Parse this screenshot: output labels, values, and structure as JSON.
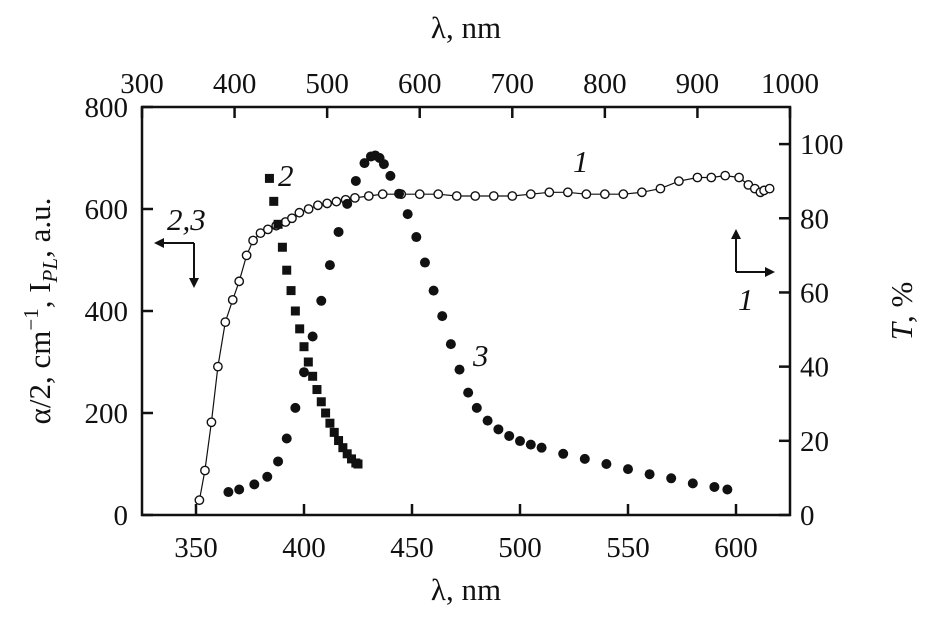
{
  "chart_data": {
    "type": "scatter",
    "top_axis": {
      "label": "λ, nm",
      "range": [
        300,
        1000
      ],
      "ticks": [
        "300",
        "400",
        "500",
        "600",
        "700",
        "800",
        "900",
        "1000"
      ]
    },
    "bottom_axis": {
      "label": "λ, nm",
      "range": [
        325,
        625
      ],
      "ticks": [
        "350",
        "400",
        "450",
        "500",
        "550",
        "600"
      ]
    },
    "left_axis": {
      "label": "α/2, cm⁻¹, IPL, a.u.",
      "label_parts": [
        "α/2, cm",
        "−1",
        ", I",
        "PL",
        ", a.u."
      ],
      "range": [
        0,
        800
      ],
      "ticks": [
        "0",
        "200",
        "400",
        "600",
        "800"
      ]
    },
    "right_axis": {
      "label": "T, %",
      "label_parts": [
        "T",
        ", %"
      ],
      "range": [
        0,
        110
      ],
      "ticks": [
        "0",
        "20",
        "40",
        "60",
        "80",
        "100"
      ]
    },
    "curve_labels": {
      "c1": "1",
      "c1_arrow": "1",
      "c23_arrow": "2,3",
      "c2": "2",
      "c3": "3"
    },
    "series": [
      {
        "name": "1",
        "description": "Transmittance T, % (top axis λ, right axis)",
        "marker": "open-circle",
        "axis": "top-right",
        "x": [
          362,
          368,
          375,
          382,
          390,
          398,
          405,
          413,
          420,
          428,
          436,
          445,
          455,
          462,
          470,
          480,
          490,
          500,
          510,
          520,
          530,
          545,
          560,
          580,
          600,
          620,
          640,
          660,
          680,
          700,
          720,
          740,
          760,
          780,
          800,
          820,
          840,
          860,
          880,
          900,
          915,
          930,
          945,
          955,
          962,
          968,
          972,
          978
        ],
        "y": [
          4,
          12,
          25,
          40,
          52,
          58,
          63,
          70,
          74,
          76,
          77,
          78,
          79,
          80,
          81.5,
          82.5,
          83.5,
          84,
          84.5,
          85,
          85.5,
          86,
          86.5,
          86.5,
          86.5,
          86.5,
          86,
          86,
          86,
          86,
          86.5,
          87,
          87,
          86.5,
          86.5,
          86.5,
          87,
          88,
          90,
          91,
          91,
          91.5,
          91,
          89,
          88,
          87,
          87.5,
          88
        ]
      },
      {
        "name": "2",
        "description": "Absorption α/2, cm⁻¹ (bottom axis λ, left axis)",
        "marker": "filled-square",
        "axis": "bottom-left",
        "x": [
          384,
          386,
          388,
          390,
          392,
          394,
          396,
          398,
          400,
          402,
          404,
          406,
          408,
          410,
          412,
          414,
          416,
          418,
          420,
          422,
          424,
          425
        ],
        "y": [
          660,
          615,
          570,
          525,
          480,
          440,
          400,
          365,
          330,
          300,
          272,
          246,
          222,
          200,
          180,
          162,
          146,
          132,
          120,
          110,
          102,
          100
        ]
      },
      {
        "name": "3",
        "description": "Photoluminescence intensity IPL, a.u. (bottom axis λ, left axis)",
        "marker": "filled-circle",
        "axis": "bottom-left",
        "x": [
          365,
          370,
          377,
          383,
          388,
          392,
          396,
          400,
          404,
          408,
          412,
          416,
          420,
          424,
          428,
          431,
          433,
          435,
          437,
          440,
          444,
          448,
          452,
          456,
          460,
          464,
          468,
          472,
          476,
          480,
          485,
          490,
          495,
          500,
          505,
          510,
          520,
          530,
          540,
          550,
          560,
          570,
          580,
          590,
          596
        ],
        "y": [
          45,
          50,
          60,
          75,
          105,
          150,
          210,
          280,
          350,
          420,
          490,
          555,
          610,
          655,
          690,
          703,
          705,
          700,
          688,
          665,
          630,
          590,
          545,
          495,
          440,
          390,
          335,
          285,
          240,
          210,
          185,
          168,
          155,
          145,
          138,
          132,
          120,
          110,
          100,
          90,
          80,
          72,
          62,
          55,
          50
        ]
      }
    ]
  }
}
